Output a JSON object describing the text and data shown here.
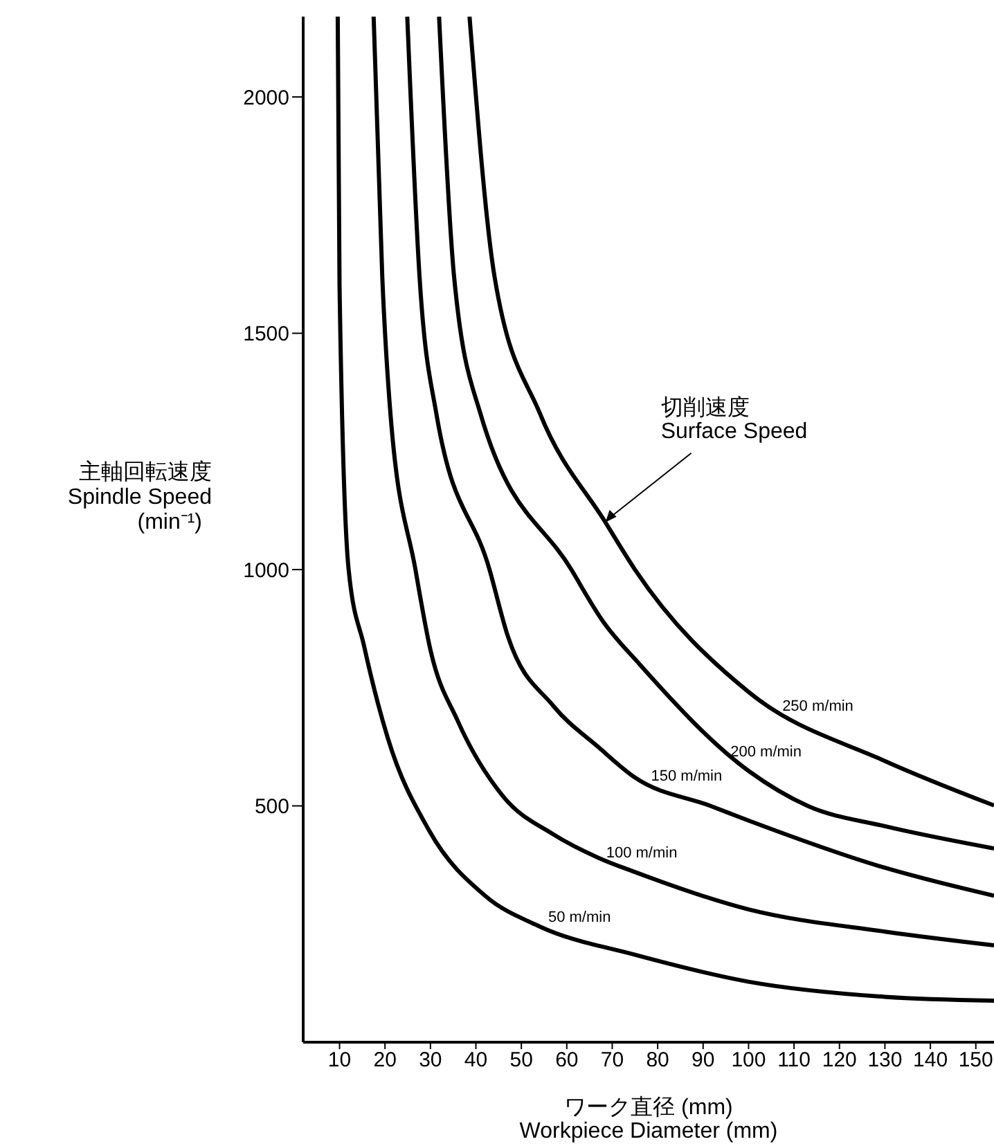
{
  "chart_data": {
    "type": "line",
    "xlabel": "ワーク直径 (mm)\nWorkpiece Diameter (mm)",
    "ylabel": "主軸回転速度\nSpindle Speed\n(min⁻¹)",
    "xlim": [
      2,
      154
    ],
    "xticks": [
      10,
      20,
      30,
      40,
      50,
      60,
      70,
      80,
      90,
      100,
      110,
      120,
      130,
      140,
      150
    ],
    "ylim": [
      0,
      2170
    ],
    "yticks": [
      500,
      1000,
      1500,
      2000
    ],
    "grid": false,
    "marker": "none",
    "line_style": "solid",
    "series": [
      {
        "name": "50 m/min",
        "color": "#000000",
        "x": [
          9.6,
          10,
          12,
          15.4,
          20.6,
          29.7,
          42,
          54,
          75,
          100,
          130,
          154
        ],
        "values": [
          2170,
          1600,
          1000,
          838,
          644,
          448,
          310,
          245,
          185,
          128,
          96,
          88
        ]
      },
      {
        "name": "100 m/min",
        "color": "#000000",
        "x": [
          17.5,
          19.4,
          21.2,
          26.7,
          30,
          36,
          46,
          57,
          67,
          75,
          100,
          130,
          154
        ],
        "values": [
          2170,
          1620,
          1330,
          1000,
          830,
          680,
          520,
          440,
          390,
          360,
          281,
          234,
          205
        ]
      },
      {
        "name": "150 m/min",
        "color": "#000000",
        "x": [
          24.9,
          27.6,
          31.3,
          43,
          47,
          57,
          67,
          75,
          91.6,
          100,
          130,
          154
        ],
        "values": [
          2170,
          1620,
          1330,
          1000,
          860,
          712,
          624,
          560,
          500,
          469,
          369,
          310
        ]
      },
      {
        "name": "200 m/min",
        "color": "#000000",
        "x": [
          31.9,
          35.2,
          41,
          61,
          68,
          76,
          100,
          113,
          130,
          154
        ],
        "values": [
          2170,
          1620,
          1330,
          1000,
          890,
          800,
          574,
          500,
          457,
          410
        ]
      },
      {
        "name": "250 m/min",
        "color": "#000000",
        "x": [
          38.6,
          44.1,
          54.1,
          68.5,
          75,
          100,
          130,
          154
        ],
        "values": [
          2170,
          1620,
          1330,
          1100,
          1000,
          741,
          595,
          501
        ]
      }
    ],
    "annotations": [
      {
        "text": "切削速度\nSurface Speed",
        "x": 68.5,
        "y": 1100
      }
    ]
  }
}
